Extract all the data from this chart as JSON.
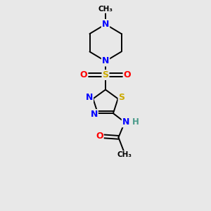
{
  "bg_color": "#e8e8e8",
  "atom_colors": {
    "C": "#000000",
    "N": "#0000ff",
    "S": "#ccaa00",
    "O": "#ff0000",
    "H": "#4a9a8a"
  },
  "bond_color": "#000000",
  "figsize": [
    3.0,
    3.0
  ],
  "dpi": 100
}
